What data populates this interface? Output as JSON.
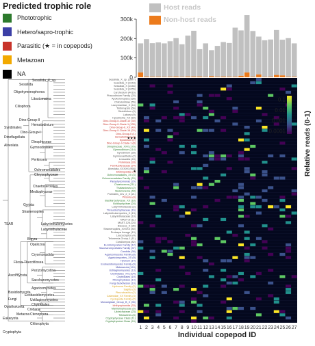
{
  "chart_data": [
    {
      "type": "bar",
      "xlabel": "",
      "ylabel": "",
      "ylim": [
        0,
        300000
      ],
      "y_ticks": [
        "300k",
        "200k",
        "100k",
        "0"
      ],
      "categories": [
        "1",
        "2",
        "3",
        "4",
        "5",
        "6",
        "7",
        "8",
        "9",
        "10",
        "11",
        "12",
        "13",
        "14",
        "15",
        "16",
        "17",
        "18",
        "19",
        "20",
        "21",
        "22",
        "23",
        "24",
        "25",
        "26",
        "27"
      ],
      "stacked": true,
      "legend": [
        "Host reads",
        "Non-host reads"
      ],
      "series": [
        {
          "name": "Non-host reads",
          "color": "#ec7b1c",
          "values": [
            25000,
            4000,
            3000,
            3000,
            2000,
            3000,
            4000,
            2500,
            4000,
            4000,
            4000,
            2000,
            6000,
            3000,
            4000,
            3000,
            3000,
            8000,
            25000,
            3000,
            15000,
            2000,
            3000,
            12000,
            10000,
            3000,
            3000
          ]
        },
        {
          "name": "Host reads",
          "color": "#c0c0c0",
          "values": [
            150000,
            193000,
            173000,
            177000,
            173000,
            183000,
            198000,
            168000,
            211000,
            236000,
            141000,
            173000,
            134000,
            159000,
            178000,
            174000,
            253000,
            234000,
            296000,
            236000,
            195000,
            189000,
            192000,
            232000,
            184000,
            199000,
            172000
          ]
        }
      ]
    },
    {
      "type": "heatmap",
      "xlabel": "Individual copepod ID",
      "ylabel": "",
      "colorbar_label": "Relative reads (0-1)",
      "colorbar_ticks": [
        "0.1",
        "0.01",
        "0.001",
        "0.0001"
      ],
      "x": [
        "1",
        "2",
        "3",
        "4",
        "5",
        "6",
        "7",
        "8",
        "9",
        "10",
        "11",
        "12",
        "13",
        "14",
        "15",
        "16",
        "17",
        "18",
        "19",
        "20",
        "21",
        "22",
        "23",
        "24",
        "25",
        "26",
        "27"
      ],
      "rows": [
        {
          "label": "Sessilida_X_sp. (1877)",
          "group": "NA"
        },
        {
          "label": "Sessilida_X (1043)",
          "group": "NA"
        },
        {
          "label": "Sessilida_X (1046)",
          "group": "NA"
        },
        {
          "label": "Sessilida_X (1055)",
          "group": "NA"
        },
        {
          "label": "Carchesium (4016)",
          "group": "NA"
        },
        {
          "label": "Phacodinium Family (25)",
          "group": "NA"
        },
        {
          "label": "Apokeronopsis (158)",
          "group": "NA"
        },
        {
          "label": "Chilodontidae (55)",
          "group": "NA"
        },
        {
          "label": "Lacrymaridae_X (44)",
          "group": "NA"
        },
        {
          "label": "Tintinnopsis (66)",
          "group": "NA"
        },
        {
          "label": "Strobilidium (9)",
          "group": "NA"
        },
        {
          "label": "Laboea (9)",
          "group": "NA"
        },
        {
          "label": "Hypotrichia_XX (59)",
          "group": "NA"
        },
        {
          "label": "Dino-Group-II-Clade-10 (30)",
          "group": "Parasitic"
        },
        {
          "label": "Dino-Group-II-Clade-1 (135)",
          "group": "Parasitic"
        },
        {
          "label": "Dino-Group-II_XX (49)",
          "group": "Parasitic"
        },
        {
          "label": "Dino-Group-II-Clade-16 (20)",
          "group": "Parasitic"
        },
        {
          "label": "Dino-Group-II (1)",
          "group": "Parasitic"
        },
        {
          "label": "Hematodinium (4)",
          "group": "Parasitic"
        },
        {
          "label": "Syndinium (2)",
          "group": "Parasitic"
        },
        {
          "label": "Dino-Group-I-Clade-1 (8)",
          "group": "Parasitic"
        },
        {
          "label": "Dinophyceae_XXX (176)",
          "group": "Phototrophic"
        },
        {
          "label": "Gymnodinium (114)",
          "group": "Phototrophic"
        },
        {
          "label": "Gyrodinium (28)",
          "group": "NA"
        },
        {
          "label": "Gymnoxanthella (2)",
          "group": "NA"
        },
        {
          "label": "Lessardia (43)",
          "group": "NA"
        },
        {
          "label": "Perkinsea (33)",
          "group": "Parasitic"
        },
        {
          "label": "Parviluciferaceae (24)",
          "group": "Parasitic"
        },
        {
          "label": "Alveolata_XXXXX (968)",
          "group": "NA"
        },
        {
          "label": "Ellobiopsidae (4)",
          "group": "Parasitic"
        },
        {
          "label": "Ochromonadales_XX (4)",
          "group": "Phototrophic"
        },
        {
          "label": "Ochromonadales Family (20)",
          "group": "Phototrophic"
        },
        {
          "label": "Paraphysomonas (29)",
          "group": "Hetero/sapro-trophic"
        },
        {
          "label": "Chaetoceros (211)",
          "group": "Phototrophic"
        },
        {
          "label": "Thalassiosira (2)",
          "group": "Phototrophic"
        },
        {
          "label": "Skeletonema (48)",
          "group": "Phototrophic"
        },
        {
          "label": "Parmales_env_2_X (21)",
          "group": "NA"
        },
        {
          "label": "Pirsonia (4)",
          "group": "Parasitic"
        },
        {
          "label": "Bacillariophyceae_XX (18)",
          "group": "Phototrophic"
        },
        {
          "label": "Bolidophyceae (24)",
          "group": "Phototrophic"
        },
        {
          "label": "Labyrinthulaceae (2)",
          "group": "NA"
        },
        {
          "label": "Thraustochytriaceae (16)",
          "group": "Hetero/sapro-trophic"
        },
        {
          "label": "Labyrinthulomycetes_X (13)",
          "group": "NA"
        },
        {
          "label": "Labyrinthulaceae (10)",
          "group": "NA"
        },
        {
          "label": "MAST-3I (11)",
          "group": "NA"
        },
        {
          "label": "MAST-12A (24)",
          "group": "NA"
        },
        {
          "label": "Bicoeca_X (35)",
          "group": "NA"
        },
        {
          "label": "Stramenopiles_XXXXX (80)",
          "group": "NA"
        },
        {
          "label": "Protaspa lineage (10)",
          "group": "NA"
        },
        {
          "label": "Leucocryptos (4)",
          "group": "NA"
        },
        {
          "label": "Telonemia-Group-1 (11)",
          "group": "NA"
        },
        {
          "label": "Corallomyxa (82)",
          "group": "NA"
        },
        {
          "label": "Eurotiomycetes Family (12)",
          "group": "Hetero/sapro-trophic"
        },
        {
          "label": "Saccharomycetales Family (37)",
          "group": "Hetero/sapro-trophic"
        },
        {
          "label": "Candida (38)",
          "group": "Hetero/sapro-trophic"
        },
        {
          "label": "Agaricomycetes Family (8)",
          "group": "Hetero/sapro-trophic"
        },
        {
          "label": "Agaricomycetes_XX (9)",
          "group": "Hetero/sapro-trophic"
        },
        {
          "label": "Hydnum (14)",
          "group": "Hetero/sapro-trophic"
        },
        {
          "label": "Exobasidiomycetes Family (9)",
          "group": "Hetero/sapro-trophic"
        },
        {
          "label": "Malassezia (124)",
          "group": "Hetero/sapro-trophic"
        },
        {
          "label": "Ustilaginomycetes (13)",
          "group": "Hetero/sapro-trophic"
        },
        {
          "label": "Chytridiales_XX (104)",
          "group": "Hetero/sapro-trophic"
        },
        {
          "label": "Chytridiales (19)",
          "group": "Hetero/sapro-trophic"
        },
        {
          "label": "Rhizophydiales (14)",
          "group": "Hetero/sapro-trophic"
        },
        {
          "label": "Fungi Subdivision (10)",
          "group": "Hetero/sapro-trophic"
        },
        {
          "label": "Hydrozoa Family (2)",
          "group": "Metazoan"
        },
        {
          "label": "Sagitta (3)",
          "group": "Metazoan"
        },
        {
          "label": "Pleurobrachia (2)",
          "group": "Metazoan"
        },
        {
          "label": "Calanidae_XX Family (3)",
          "group": "Metazoan"
        },
        {
          "label": "Cyclopoida Family (2)",
          "group": "Metazoan"
        },
        {
          "label": "Monosigidae_Group_B_X (35)",
          "group": "Hetero/sapro-trophic"
        },
        {
          "label": "Ichthyophonida (33)",
          "group": "Parasitic"
        },
        {
          "label": "Mamiellophyceae (6)",
          "group": "Phototrophic"
        },
        {
          "label": "Ulotrichaceae (23)",
          "group": "Phototrophic"
        },
        {
          "label": "Tetraselmis (8)",
          "group": "Phototrophic"
        },
        {
          "label": "Cryptophyceae Class (11)",
          "group": "Phototrophic"
        },
        {
          "label": "Cryptophyceae Class (24)",
          "group": "Phototrophic"
        }
      ]
    }
  ],
  "legend": {
    "title": "Predicted trophic role",
    "items": [
      {
        "label": "Phototrophic",
        "color": "#2d7a2d"
      },
      {
        "label": "Hetero/sapro-trophic",
        "color": "#3b3fa6"
      },
      {
        "label": "Parasitic (★ = in copepods)",
        "color": "#c8332a"
      },
      {
        "label": "Metazoan",
        "color": "#f2a900"
      },
      {
        "label": "NA",
        "color": "#000000"
      }
    ]
  },
  "group_colors": {
    "Phototrophic": "#2d7a2d",
    "Hetero/sapro-trophic": "#3b3fa6",
    "Parasitic": "#c8332a",
    "Metazoan": "#d9a21b",
    "NA": "#555555"
  },
  "tree_labels": [
    "Sessilida_X_sp.",
    "Sessilida",
    "Oligohymenophorea",
    "Litostomatea",
    "Ciliophora",
    "Dino-Group-II",
    "Syndiniales",
    "Hematodinium",
    "Dino-Group-I",
    "Dinoflagellata",
    "Alveolata",
    "Dinophyceae",
    "Gymnodiniales",
    "Perkinsea",
    "Ochromonadales",
    "Chrysophyceae",
    "Chaetocerotales",
    "Mediophyceae",
    "Gyrista",
    "Stramenopiles",
    "Labyrinthulomycetes",
    "Labyrinthulaceae",
    "Bigyra",
    "Opalozoa",
    "TSAR",
    "Cryomonadida",
    "Filosa-Thecofilosea",
    "Pezizomycotina",
    "Ascomycota",
    "Saccharomycetes",
    "Agaricomycetes",
    "Basidiomycota",
    "Exobasidiomycetes",
    "Ustilaginomycetes",
    "Fungi",
    "Chytridiales",
    "Opisthokonta",
    "Cnidaria",
    "Metazoa",
    "Ctenophora",
    "Eukaryota",
    "Chlorophyta",
    "Cryptophyta"
  ],
  "star_markers": [
    "★",
    "★★★"
  ],
  "colorbar_colors": [
    "#fde725",
    "#5ec962",
    "#21918c",
    "#3b528b",
    "#440154"
  ]
}
